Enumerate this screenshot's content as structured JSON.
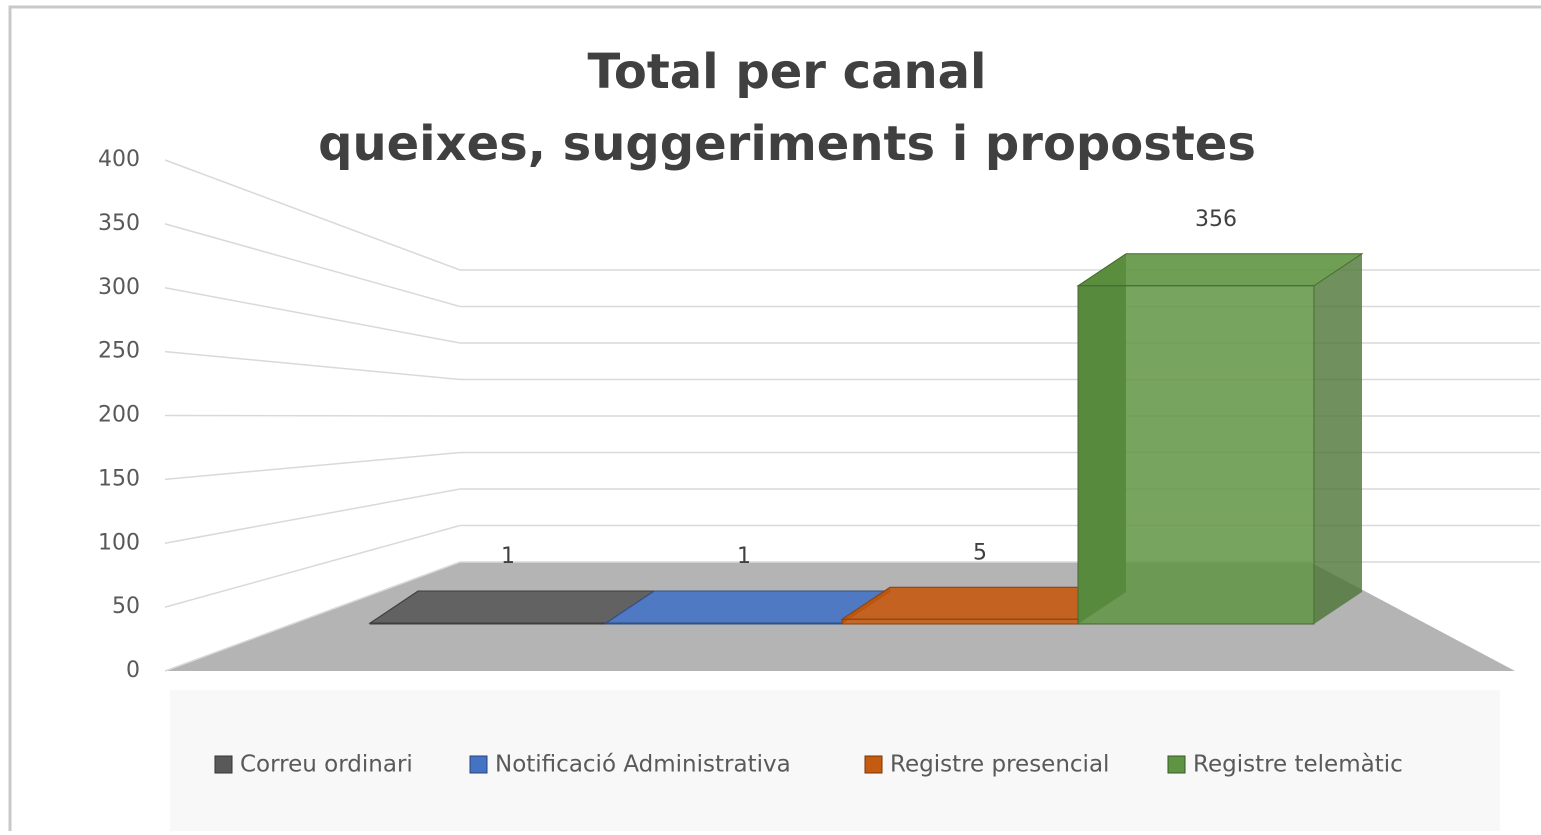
{
  "chart_data": {
    "type": "bar",
    "title": [
      "Total per canal",
      "queixes, suggeriments i propostes"
    ],
    "ylim": [
      0,
      400
    ],
    "yticks": [
      0,
      50,
      100,
      150,
      200,
      250,
      300,
      350,
      400
    ],
    "grid": true,
    "legend": "bottom",
    "series": [
      {
        "name": "Correu ordinari",
        "color": "#595959",
        "values": [
          1
        ]
      },
      {
        "name": "Notificació Administrativa",
        "color": "#4472c4",
        "values": [
          1
        ]
      },
      {
        "name": "Registre presencial",
        "color": "#c55a11",
        "values": [
          5
        ]
      },
      {
        "name": "Registre telemàtic",
        "color": "#5f9443",
        "values": [
          356
        ]
      }
    ]
  }
}
